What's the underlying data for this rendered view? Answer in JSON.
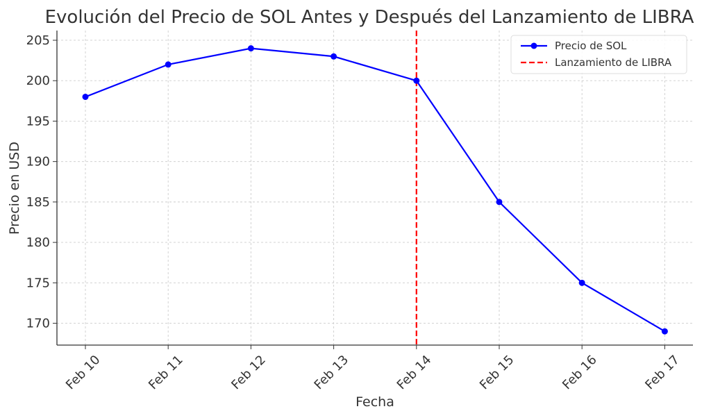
{
  "chart_data": {
    "type": "line",
    "title": "Evolución del Precio de SOL Antes y Después del Lanzamiento de LIBRA",
    "xlabel": "Fecha",
    "ylabel": "Precio en USD",
    "categories": [
      "Feb 10",
      "Feb 11",
      "Feb 12",
      "Feb 13",
      "Feb 14",
      "Feb 15",
      "Feb 16",
      "Feb 17"
    ],
    "series": [
      {
        "name": "Precio de SOL",
        "color": "#0000ff",
        "values": [
          198,
          202,
          204,
          203,
          200,
          185,
          175,
          169
        ]
      }
    ],
    "annotations": [
      {
        "name": "Lanzamiento de LIBRA",
        "type": "vertical-line",
        "x": "Feb 14",
        "color": "#ff0000",
        "style": "dashed"
      }
    ],
    "yticks": [
      170,
      175,
      180,
      185,
      190,
      195,
      200,
      205
    ],
    "ylim": [
      167.3,
      206.2
    ],
    "grid": true,
    "legend_position": "top-right"
  }
}
